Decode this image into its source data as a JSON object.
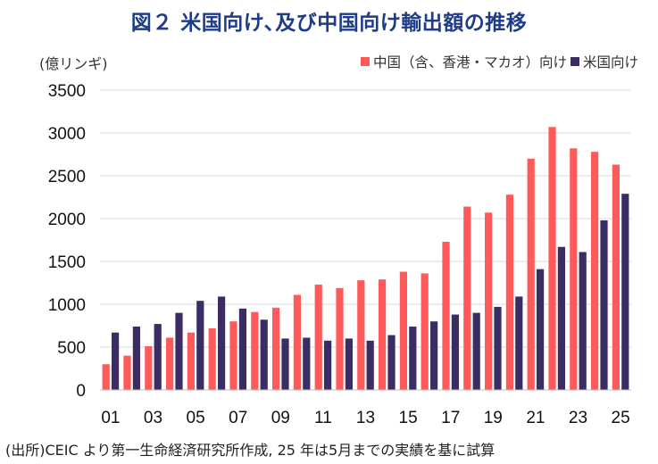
{
  "figure": {
    "title": "図２ 米国向け､及び中国向け輸出額の推移",
    "source": "(出所)CEIC より第一生命経済研究所作成, 25 年は5月までの実績を基に試算"
  },
  "chart_data": {
    "type": "bar",
    "ylabel": "(億リンギ)",
    "ylim": [
      0,
      3500
    ],
    "yticks": [
      "0",
      "500",
      "1000",
      "1500",
      "2000",
      "2500",
      "3000",
      "3500"
    ],
    "grid": true,
    "legend_position": "top-right",
    "categories": [
      "01",
      "02",
      "03",
      "04",
      "05",
      "06",
      "07",
      "08",
      "09",
      "10",
      "11",
      "12",
      "13",
      "14",
      "15",
      "16",
      "17",
      "18",
      "19",
      "20",
      "21",
      "22",
      "23",
      "24",
      "25"
    ],
    "xtick_labels": [
      "01",
      "03",
      "05",
      "07",
      "09",
      "11",
      "13",
      "15",
      "17",
      "19",
      "21",
      "23",
      "25"
    ],
    "series": [
      {
        "name": "中国（含、香港・マカオ）向け",
        "color": "#ff5a5a",
        "values": [
          300,
          400,
          510,
          610,
          670,
          720,
          800,
          910,
          960,
          1110,
          1230,
          1190,
          1280,
          1290,
          1380,
          1360,
          1730,
          2140,
          2070,
          2280,
          2700,
          3070,
          2820,
          2780,
          2630
        ]
      },
      {
        "name": "米国向け",
        "color": "#3b2d63",
        "values": [
          670,
          740,
          770,
          900,
          1040,
          1090,
          950,
          820,
          600,
          610,
          575,
          600,
          575,
          640,
          740,
          800,
          880,
          900,
          970,
          1090,
          1410,
          1670,
          1610,
          1980,
          2290
        ]
      }
    ]
  }
}
